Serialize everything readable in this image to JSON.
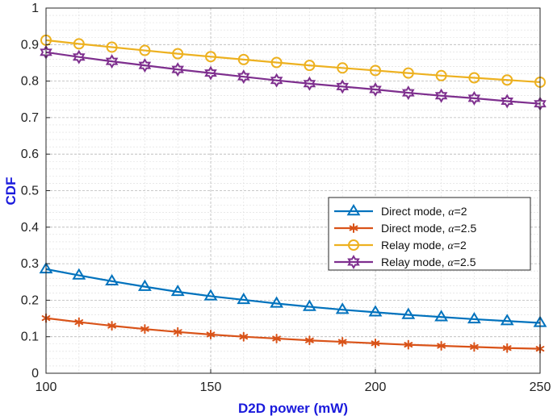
{
  "chart_data": {
    "type": "line",
    "title": "",
    "xlabel": "D2D power (mW)",
    "ylabel": "CDF",
    "xlim": [
      100,
      250
    ],
    "ylim": [
      0,
      1
    ],
    "xticks": [
      100,
      150,
      200,
      250
    ],
    "yticks": [
      0,
      0.1,
      0.2,
      0.3,
      0.4,
      0.5,
      0.6,
      0.7,
      0.8,
      0.9,
      1
    ],
    "grid": true,
    "legend_position": "center-right",
    "label_color": "#1a1adc",
    "x": [
      100,
      110,
      120,
      130,
      140,
      150,
      160,
      170,
      180,
      190,
      200,
      210,
      220,
      230,
      240,
      250
    ],
    "series": [
      {
        "name": "Direct mode, α=2",
        "legend_prefix": "Direct mode, ",
        "legend_alpha": "α",
        "legend_suffix": "=2",
        "color": "#0072bd",
        "marker": "triangle",
        "values": [
          0.285,
          0.268,
          0.252,
          0.237,
          0.223,
          0.211,
          0.201,
          0.191,
          0.182,
          0.174,
          0.167,
          0.16,
          0.154,
          0.148,
          0.143,
          0.138
        ]
      },
      {
        "name": "Direct mode, α=2.5",
        "legend_prefix": "Direct mode, ",
        "legend_alpha": "α",
        "legend_suffix": "=2.5",
        "color": "#d95319",
        "marker": "asterisk",
        "values": [
          0.151,
          0.14,
          0.13,
          0.121,
          0.113,
          0.106,
          0.1,
          0.095,
          0.09,
          0.086,
          0.082,
          0.078,
          0.075,
          0.072,
          0.069,
          0.067
        ]
      },
      {
        "name": "Relay mode, α=2",
        "legend_prefix": "Relay mode, ",
        "legend_alpha": "α",
        "legend_suffix": "=2",
        "color": "#edb120",
        "marker": "circle",
        "values": [
          0.912,
          0.902,
          0.893,
          0.884,
          0.875,
          0.867,
          0.859,
          0.851,
          0.843,
          0.836,
          0.829,
          0.822,
          0.815,
          0.809,
          0.803,
          0.797
        ]
      },
      {
        "name": "Relay mode, α=2.5",
        "legend_prefix": "Relay mode, ",
        "legend_alpha": "α",
        "legend_suffix": "=2.5",
        "color": "#7e2f8e",
        "marker": "hexagram",
        "values": [
          0.879,
          0.866,
          0.854,
          0.843,
          0.832,
          0.822,
          0.812,
          0.802,
          0.793,
          0.785,
          0.777,
          0.768,
          0.76,
          0.753,
          0.745,
          0.738
        ]
      }
    ]
  }
}
